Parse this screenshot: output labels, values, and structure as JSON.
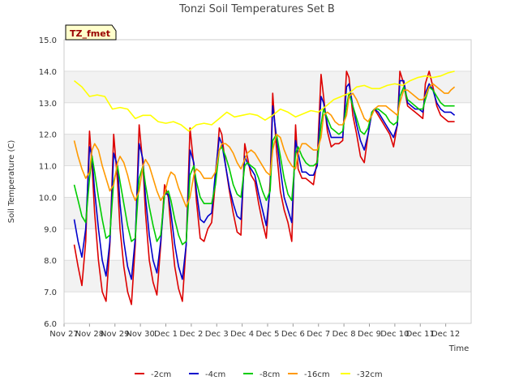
{
  "chart_data": {
    "type": "line",
    "title": "Tonzi Soil Temperatures Set B",
    "xlabel": "Time",
    "ylabel": "Soil Temperature (C)",
    "ylim": [
      6.0,
      15.0
    ],
    "xlim": [
      0,
      16
    ],
    "yticks": [
      "6.0",
      "7.0",
      "8.0",
      "9.0",
      "10.0",
      "11.0",
      "12.0",
      "13.0",
      "14.0",
      "15.0"
    ],
    "xticks": [
      "Nov 27",
      "Nov 28",
      "Nov 29",
      "Nov 30",
      "Dec 1",
      "Dec 2",
      "Dec 3",
      "Dec 4",
      "Dec 5",
      "Dec 6",
      "Dec 7",
      "Dec 8",
      "Dec 9",
      "Dec 10",
      "Dec 11",
      "Dec 12"
    ],
    "x_axis_note": "x values are days since Nov 27 (0 = Nov 27, 15 = Dec 11)",
    "grid": "horizontal bands",
    "legend_position": "bottom",
    "annotation": "TZ_fmet",
    "series": [
      {
        "name": "-2cm",
        "color": "#dd0000",
        "x": [
          0.4,
          0.55,
          0.7,
          0.85,
          1.0,
          1.1,
          1.2,
          1.35,
          1.5,
          1.65,
          1.8,
          1.95,
          2.1,
          2.2,
          2.35,
          2.5,
          2.65,
          2.8,
          2.95,
          3.1,
          3.2,
          3.35,
          3.5,
          3.65,
          3.8,
          3.95,
          4.1,
          4.2,
          4.35,
          4.5,
          4.65,
          4.8,
          4.95,
          5.1,
          5.2,
          5.35,
          5.5,
          5.65,
          5.8,
          5.95,
          6.1,
          6.2,
          6.35,
          6.5,
          6.65,
          6.8,
          6.95,
          7.1,
          7.2,
          7.35,
          7.5,
          7.65,
          7.8,
          7.95,
          8.1,
          8.2,
          8.35,
          8.5,
          8.65,
          8.8,
          8.95,
          9.1,
          9.2,
          9.35,
          9.5,
          9.65,
          9.8,
          9.95,
          10.1,
          10.2,
          10.35,
          10.5,
          10.65,
          10.8,
          10.95,
          11.1,
          11.2,
          11.35,
          11.5,
          11.65,
          11.8,
          11.95,
          12.1,
          12.2,
          12.35,
          12.5,
          12.65,
          12.8,
          12.95,
          13.1,
          13.2,
          13.35,
          13.5,
          13.65,
          13.8,
          13.95,
          14.1,
          14.2,
          14.35,
          14.5,
          14.65,
          14.8,
          14.95,
          15.1,
          15.2,
          15.35
        ],
        "y": [
          8.5,
          7.8,
          7.2,
          8.6,
          12.1,
          11.0,
          9.5,
          8.0,
          7.0,
          6.7,
          8.5,
          12.0,
          10.5,
          9.0,
          7.8,
          7.0,
          6.6,
          8.5,
          12.3,
          11.0,
          9.5,
          8.0,
          7.3,
          6.9,
          8.5,
          10.4,
          10.0,
          9.0,
          7.8,
          7.1,
          6.7,
          8.5,
          12.2,
          11.0,
          9.9,
          8.7,
          8.6,
          9.0,
          9.2,
          10.5,
          12.2,
          12.0,
          11.0,
          10.2,
          9.5,
          8.9,
          8.8,
          11.7,
          11.3,
          10.7,
          10.5,
          9.8,
          9.2,
          8.7,
          10.5,
          13.3,
          11.5,
          10.2,
          9.6,
          9.2,
          8.6,
          12.3,
          10.9,
          10.6,
          10.6,
          10.5,
          10.4,
          11.2,
          13.9,
          13.2,
          12.1,
          11.6,
          11.7,
          11.7,
          11.8,
          14.0,
          13.8,
          12.6,
          12.0,
          11.3,
          11.1,
          12.0,
          12.7,
          12.8,
          12.6,
          12.4,
          12.2,
          12.0,
          11.6,
          12.3,
          14.0,
          13.6,
          12.9,
          12.8,
          12.7,
          12.6,
          12.5,
          13.6,
          14.0,
          13.5,
          12.9,
          12.6,
          12.5,
          12.4,
          12.4,
          12.4
        ]
      },
      {
        "name": "-4cm",
        "color": "#0000cc",
        "x": [
          0.4,
          0.55,
          0.7,
          0.85,
          1.0,
          1.1,
          1.2,
          1.35,
          1.5,
          1.65,
          1.8,
          1.95,
          2.1,
          2.2,
          2.35,
          2.5,
          2.65,
          2.8,
          2.95,
          3.1,
          3.2,
          3.35,
          3.5,
          3.65,
          3.8,
          3.95,
          4.1,
          4.2,
          4.35,
          4.5,
          4.65,
          4.8,
          4.95,
          5.1,
          5.2,
          5.35,
          5.5,
          5.65,
          5.8,
          5.95,
          6.1,
          6.2,
          6.35,
          6.5,
          6.65,
          6.8,
          6.95,
          7.1,
          7.2,
          7.35,
          7.5,
          7.65,
          7.8,
          7.95,
          8.1,
          8.2,
          8.35,
          8.5,
          8.65,
          8.8,
          8.95,
          9.1,
          9.2,
          9.35,
          9.5,
          9.65,
          9.8,
          9.95,
          10.1,
          10.2,
          10.35,
          10.5,
          10.65,
          10.8,
          10.95,
          11.1,
          11.2,
          11.35,
          11.5,
          11.65,
          11.8,
          11.95,
          12.1,
          12.2,
          12.35,
          12.5,
          12.65,
          12.8,
          12.95,
          13.1,
          13.2,
          13.35,
          13.5,
          13.65,
          13.8,
          13.95,
          14.1,
          14.2,
          14.35,
          14.5,
          14.65,
          14.8,
          14.95,
          15.1,
          15.2,
          15.35
        ],
        "y": [
          9.3,
          8.6,
          8.1,
          9.0,
          11.6,
          11.3,
          10.2,
          9.0,
          8.0,
          7.5,
          8.6,
          11.4,
          11.0,
          9.8,
          8.6,
          7.8,
          7.4,
          8.7,
          11.7,
          11.2,
          10.0,
          8.8,
          8.0,
          7.6,
          8.6,
          10.1,
          10.1,
          9.5,
          8.5,
          7.8,
          7.4,
          8.5,
          11.5,
          11.1,
          10.2,
          9.3,
          9.2,
          9.4,
          9.5,
          10.8,
          11.9,
          11.7,
          11.0,
          10.3,
          9.8,
          9.4,
          9.3,
          11.3,
          11.1,
          10.9,
          10.7,
          10.1,
          9.6,
          9.1,
          10.3,
          12.9,
          11.9,
          10.9,
          10.0,
          9.6,
          9.2,
          11.8,
          11.4,
          10.8,
          10.8,
          10.7,
          10.7,
          11.0,
          13.2,
          13.0,
          12.3,
          11.9,
          11.9,
          11.9,
          11.9,
          13.5,
          13.6,
          12.9,
          12.3,
          11.8,
          11.5,
          12.0,
          12.7,
          12.8,
          12.7,
          12.5,
          12.3,
          12.1,
          11.9,
          12.3,
          13.7,
          13.7,
          13.0,
          12.9,
          12.8,
          12.8,
          12.7,
          13.3,
          13.6,
          13.4,
          13.0,
          12.8,
          12.7,
          12.7,
          12.7,
          12.6
        ]
      },
      {
        "name": "-8cm",
        "color": "#00cc00",
        "x": [
          0.4,
          0.55,
          0.7,
          0.85,
          1.0,
          1.1,
          1.2,
          1.35,
          1.5,
          1.65,
          1.8,
          1.95,
          2.1,
          2.2,
          2.35,
          2.5,
          2.65,
          2.8,
          2.95,
          3.1,
          3.2,
          3.35,
          3.5,
          3.65,
          3.8,
          3.95,
          4.1,
          4.2,
          4.35,
          4.5,
          4.65,
          4.8,
          4.95,
          5.1,
          5.2,
          5.35,
          5.5,
          5.65,
          5.8,
          5.95,
          6.1,
          6.2,
          6.35,
          6.5,
          6.65,
          6.8,
          6.95,
          7.1,
          7.2,
          7.35,
          7.5,
          7.65,
          7.8,
          7.95,
          8.1,
          8.2,
          8.35,
          8.5,
          8.65,
          8.8,
          8.95,
          9.1,
          9.2,
          9.35,
          9.5,
          9.65,
          9.8,
          9.95,
          10.1,
          10.2,
          10.35,
          10.5,
          10.65,
          10.8,
          10.95,
          11.1,
          11.2,
          11.35,
          11.5,
          11.65,
          11.8,
          11.95,
          12.1,
          12.2,
          12.35,
          12.5,
          12.65,
          12.8,
          12.95,
          13.1,
          13.2,
          13.35,
          13.5,
          13.65,
          13.8,
          13.95,
          14.1,
          14.2,
          14.35,
          14.5,
          14.65,
          14.8,
          14.95,
          15.1,
          15.2,
          15.35
        ],
        "y": [
          10.4,
          9.9,
          9.4,
          9.2,
          10.6,
          11.3,
          10.8,
          10.0,
          9.3,
          8.7,
          8.8,
          10.5,
          11.0,
          10.5,
          9.8,
          9.1,
          8.6,
          8.7,
          10.6,
          11.0,
          10.4,
          9.7,
          9.1,
          8.6,
          8.8,
          10.1,
          10.2,
          9.9,
          9.3,
          8.8,
          8.5,
          8.6,
          10.7,
          11.0,
          10.5,
          10.0,
          9.8,
          9.8,
          9.8,
          10.4,
          11.5,
          11.6,
          11.3,
          10.9,
          10.4,
          10.1,
          10.0,
          11.0,
          11.1,
          11.0,
          10.9,
          10.6,
          10.2,
          9.9,
          10.2,
          11.8,
          12.0,
          11.3,
          10.6,
          10.1,
          9.9,
          11.4,
          11.6,
          11.3,
          11.1,
          11.0,
          11.0,
          11.1,
          12.3,
          12.8,
          12.5,
          12.2,
          12.1,
          12.0,
          12.1,
          12.9,
          13.3,
          12.9,
          12.5,
          12.1,
          12.0,
          12.2,
          12.7,
          12.8,
          12.8,
          12.7,
          12.6,
          12.4,
          12.3,
          12.4,
          13.2,
          13.5,
          13.1,
          13.0,
          12.9,
          12.8,
          12.8,
          13.1,
          13.5,
          13.4,
          13.2,
          13.0,
          12.9,
          12.9,
          12.9,
          12.9
        ]
      },
      {
        "name": "-16cm",
        "color": "#ff9900",
        "x": [
          0.4,
          0.55,
          0.7,
          0.85,
          1.0,
          1.1,
          1.2,
          1.35,
          1.5,
          1.65,
          1.8,
          1.95,
          2.1,
          2.2,
          2.35,
          2.5,
          2.65,
          2.8,
          2.95,
          3.1,
          3.2,
          3.35,
          3.5,
          3.65,
          3.8,
          3.95,
          4.1,
          4.2,
          4.35,
          4.5,
          4.65,
          4.8,
          4.95,
          5.1,
          5.2,
          5.35,
          5.5,
          5.65,
          5.8,
          5.95,
          6.1,
          6.2,
          6.35,
          6.5,
          6.65,
          6.8,
          6.95,
          7.1,
          7.2,
          7.35,
          7.5,
          7.65,
          7.8,
          7.95,
          8.1,
          8.2,
          8.35,
          8.5,
          8.65,
          8.8,
          8.95,
          9.1,
          9.2,
          9.35,
          9.5,
          9.65,
          9.8,
          9.95,
          10.1,
          10.2,
          10.35,
          10.5,
          10.65,
          10.8,
          10.95,
          11.1,
          11.2,
          11.35,
          11.5,
          11.65,
          11.8,
          11.95,
          12.1,
          12.2,
          12.35,
          12.5,
          12.65,
          12.8,
          12.95,
          13.1,
          13.2,
          13.35,
          13.5,
          13.65,
          13.8,
          13.95,
          14.1,
          14.2,
          14.35,
          14.5,
          14.65,
          14.8,
          14.95,
          15.1,
          15.2,
          15.35
        ],
        "y": [
          11.8,
          11.3,
          10.9,
          10.6,
          10.8,
          11.5,
          11.7,
          11.5,
          11.0,
          10.6,
          10.2,
          10.4,
          11.1,
          11.3,
          11.1,
          10.7,
          10.2,
          9.9,
          10.2,
          11.0,
          11.2,
          11.0,
          10.6,
          10.2,
          9.9,
          10.1,
          10.6,
          10.8,
          10.7,
          10.3,
          10.0,
          9.7,
          10.0,
          10.7,
          10.9,
          10.8,
          10.6,
          10.6,
          10.6,
          10.8,
          11.5,
          11.7,
          11.7,
          11.6,
          11.4,
          11.1,
          10.9,
          11.2,
          11.4,
          11.5,
          11.4,
          11.2,
          11.0,
          10.8,
          10.7,
          11.5,
          12.0,
          11.9,
          11.5,
          11.2,
          11.0,
          10.9,
          11.4,
          11.7,
          11.7,
          11.6,
          11.5,
          11.5,
          11.9,
          12.6,
          12.7,
          12.6,
          12.4,
          12.3,
          12.3,
          12.6,
          13.2,
          13.3,
          13.1,
          12.8,
          12.5,
          12.4,
          12.6,
          12.8,
          12.9,
          12.9,
          12.9,
          12.8,
          12.7,
          12.6,
          13.0,
          13.4,
          13.4,
          13.3,
          13.2,
          13.1,
          13.1,
          13.2,
          13.5,
          13.6,
          13.5,
          13.4,
          13.3,
          13.3,
          13.4,
          13.5
        ]
      },
      {
        "name": "-32cm",
        "color": "#ffff00",
        "x": [
          0.4,
          0.7,
          1.0,
          1.3,
          1.6,
          1.9,
          2.2,
          2.5,
          2.8,
          3.1,
          3.4,
          3.7,
          4.0,
          4.3,
          4.6,
          4.9,
          5.2,
          5.5,
          5.8,
          6.1,
          6.4,
          6.7,
          7.0,
          7.3,
          7.6,
          7.9,
          8.2,
          8.5,
          8.8,
          9.1,
          9.4,
          9.7,
          10.0,
          10.3,
          10.6,
          10.9,
          11.2,
          11.5,
          11.8,
          12.1,
          12.4,
          12.7,
          13.0,
          13.3,
          13.6,
          13.9,
          14.2,
          14.5,
          14.8,
          15.1,
          15.35
        ],
        "y": [
          13.7,
          13.5,
          13.2,
          13.25,
          13.2,
          12.8,
          12.85,
          12.8,
          12.5,
          12.6,
          12.6,
          12.4,
          12.35,
          12.4,
          12.3,
          12.1,
          12.3,
          12.35,
          12.3,
          12.5,
          12.7,
          12.55,
          12.6,
          12.65,
          12.6,
          12.45,
          12.6,
          12.8,
          12.7,
          12.55,
          12.65,
          12.75,
          12.7,
          12.9,
          13.1,
          13.2,
          13.3,
          13.5,
          13.55,
          13.45,
          13.45,
          13.55,
          13.6,
          13.55,
          13.7,
          13.8,
          13.85,
          13.8,
          13.85,
          13.95,
          14.0
        ]
      }
    ]
  }
}
